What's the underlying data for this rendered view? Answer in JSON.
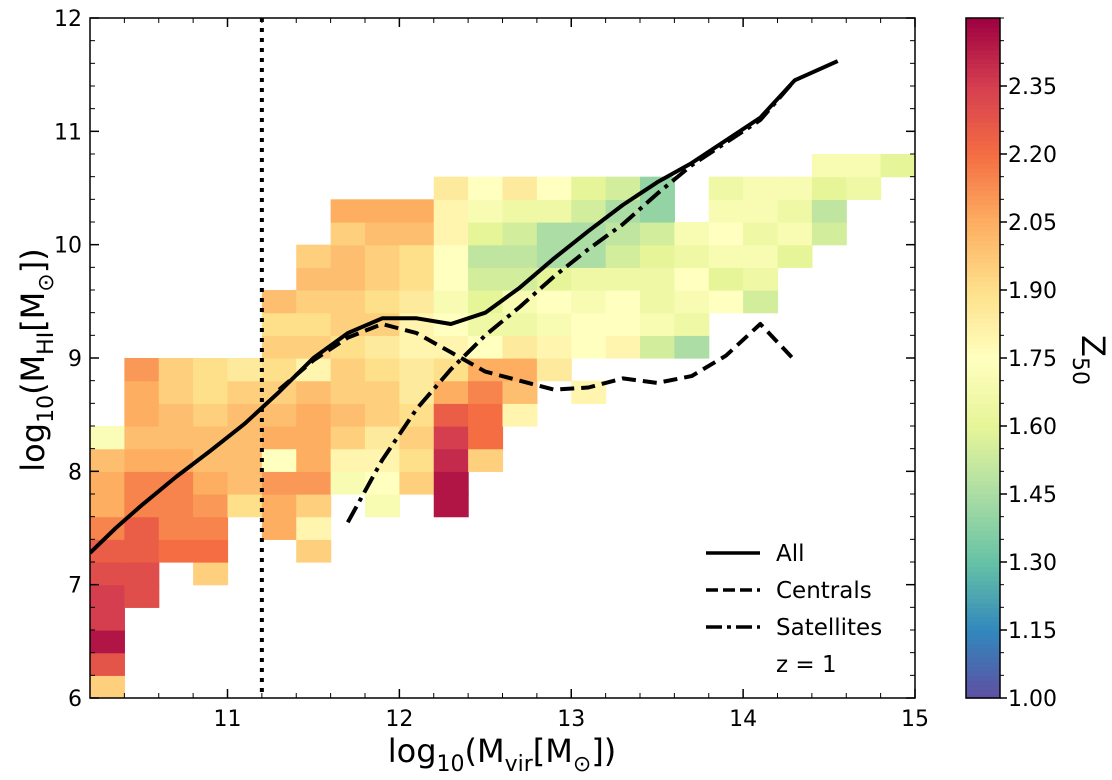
{
  "chart_data": {
    "type": "heatmap",
    "xlabel": {
      "main": "log",
      "sub1": "10",
      "open": "(M",
      "sub2": "vir",
      "mid": "[M",
      "sym": "⊙",
      "close": "])"
    },
    "ylabel": {
      "main": "log",
      "sub1": "10",
      "open": "(M",
      "sub2": "HI",
      "mid": "[M",
      "sym": "⊙",
      "close": "])"
    },
    "xlim": [
      10.2,
      15.0
    ],
    "ylim": [
      6.0,
      12.0
    ],
    "xticks": [
      {
        "value": 11,
        "label": "11"
      },
      {
        "value": 12,
        "label": "12"
      },
      {
        "value": 13,
        "label": "13"
      },
      {
        "value": 14,
        "label": "14"
      },
      {
        "value": 15,
        "label": "15"
      }
    ],
    "yticks": [
      {
        "value": 6,
        "label": "6"
      },
      {
        "value": 7,
        "label": "7"
      },
      {
        "value": 8,
        "label": "8"
      },
      {
        "value": 9,
        "label": "9"
      },
      {
        "value": 10,
        "label": "10"
      },
      {
        "value": 11,
        "label": "11"
      },
      {
        "value": 12,
        "label": "12"
      }
    ],
    "grid": false,
    "vline_x": 11.2,
    "bin": {
      "x0": 10.2,
      "dx": 0.2,
      "y0": 6.0,
      "dy": 0.2
    },
    "cells": [
      [
        0,
        0,
        1.95
      ],
      [
        0,
        1,
        2.28
      ],
      [
        0,
        2,
        2.45
      ],
      [
        0,
        3,
        2.35
      ],
      [
        0,
        4,
        2.35
      ],
      [
        0,
        5,
        2.3
      ],
      [
        0,
        6,
        2.25
      ],
      [
        0,
        7,
        2.15
      ],
      [
        0,
        8,
        2.05
      ],
      [
        0,
        9,
        2.05
      ],
      [
        0,
        10,
        2.0
      ],
      [
        0,
        11,
        1.72
      ],
      [
        1,
        4,
        2.3
      ],
      [
        1,
        5,
        2.3
      ],
      [
        1,
        6,
        2.25
      ],
      [
        1,
        7,
        2.25
      ],
      [
        1,
        8,
        2.15
      ],
      [
        1,
        9,
        2.15
      ],
      [
        1,
        10,
        2.05
      ],
      [
        1,
        11,
        2.0
      ],
      [
        1,
        12,
        2.05
      ],
      [
        1,
        13,
        2.05
      ],
      [
        1,
        14,
        2.1
      ],
      [
        2,
        6,
        2.2
      ],
      [
        2,
        7,
        2.15
      ],
      [
        2,
        8,
        2.15
      ],
      [
        2,
        9,
        2.15
      ],
      [
        2,
        10,
        2.05
      ],
      [
        2,
        11,
        2.0
      ],
      [
        2,
        12,
        2.0
      ],
      [
        2,
        13,
        1.95
      ],
      [
        2,
        14,
        1.95
      ],
      [
        3,
        5,
        1.95
      ],
      [
        3,
        6,
        2.2
      ],
      [
        3,
        7,
        2.15
      ],
      [
        3,
        8,
        2.1
      ],
      [
        3,
        9,
        2.05
      ],
      [
        3,
        10,
        2.0
      ],
      [
        3,
        11,
        2.0
      ],
      [
        3,
        12,
        1.95
      ],
      [
        3,
        13,
        1.9
      ],
      [
        3,
        14,
        1.9
      ],
      [
        4,
        8,
        1.9
      ],
      [
        4,
        9,
        2.0
      ],
      [
        4,
        10,
        2.0
      ],
      [
        4,
        11,
        2.0
      ],
      [
        4,
        12,
        2.0
      ],
      [
        4,
        13,
        1.95
      ],
      [
        4,
        14,
        1.85
      ],
      [
        5,
        7,
        2.05
      ],
      [
        5,
        8,
        2.05
      ],
      [
        5,
        9,
        2.1
      ],
      [
        5,
        10,
        1.75
      ],
      [
        5,
        11,
        2.05
      ],
      [
        5,
        12,
        2.0
      ],
      [
        5,
        13,
        1.95
      ],
      [
        5,
        14,
        1.9
      ],
      [
        5,
        15,
        1.95
      ],
      [
        5,
        16,
        1.9
      ],
      [
        5,
        17,
        2.0
      ],
      [
        6,
        6,
        1.95
      ],
      [
        6,
        7,
        1.8
      ],
      [
        6,
        8,
        1.95
      ],
      [
        6,
        9,
        2.1
      ],
      [
        6,
        10,
        2.05
      ],
      [
        6,
        11,
        2.05
      ],
      [
        6,
        12,
        2.05
      ],
      [
        6,
        13,
        2.0
      ],
      [
        6,
        14,
        1.8
      ],
      [
        6,
        15,
        1.95
      ],
      [
        6,
        16,
        1.9
      ],
      [
        6,
        17,
        1.95
      ],
      [
        6,
        18,
        2.0
      ],
      [
        6,
        19,
        1.95
      ],
      [
        7,
        9,
        1.7
      ],
      [
        7,
        10,
        1.8
      ],
      [
        7,
        11,
        1.95
      ],
      [
        7,
        12,
        2.0
      ],
      [
        7,
        13,
        1.95
      ],
      [
        7,
        14,
        1.95
      ],
      [
        7,
        15,
        1.9
      ],
      [
        7,
        16,
        1.95
      ],
      [
        7,
        17,
        1.95
      ],
      [
        7,
        18,
        2.0
      ],
      [
        7,
        19,
        2.0
      ],
      [
        7,
        20,
        1.95
      ],
      [
        7,
        21,
        2.05
      ],
      [
        8,
        8,
        1.7
      ],
      [
        8,
        9,
        1.75
      ],
      [
        8,
        10,
        1.8
      ],
      [
        8,
        11,
        1.85
      ],
      [
        8,
        12,
        1.95
      ],
      [
        8,
        13,
        1.95
      ],
      [
        8,
        14,
        1.9
      ],
      [
        8,
        15,
        1.85
      ],
      [
        8,
        16,
        1.95
      ],
      [
        8,
        17,
        1.9
      ],
      [
        8,
        18,
        1.95
      ],
      [
        8,
        19,
        1.95
      ],
      [
        8,
        20,
        2.0
      ],
      [
        8,
        21,
        2.05
      ],
      [
        9,
        9,
        1.95
      ],
      [
        9,
        10,
        1.9
      ],
      [
        9,
        11,
        1.95
      ],
      [
        9,
        12,
        1.9
      ],
      [
        9,
        13,
        1.85
      ],
      [
        9,
        14,
        1.85
      ],
      [
        9,
        15,
        1.8
      ],
      [
        9,
        16,
        1.8
      ],
      [
        9,
        17,
        1.85
      ],
      [
        9,
        18,
        1.9
      ],
      [
        9,
        19,
        1.9
      ],
      [
        9,
        20,
        2.0
      ],
      [
        9,
        21,
        2.05
      ],
      [
        10,
        8,
        2.45
      ],
      [
        10,
        9,
        2.45
      ],
      [
        10,
        10,
        2.4
      ],
      [
        10,
        11,
        2.35
      ],
      [
        10,
        12,
        2.25
      ],
      [
        10,
        13,
        2.05
      ],
      [
        10,
        14,
        1.9
      ],
      [
        10,
        15,
        1.8
      ],
      [
        10,
        16,
        1.75
      ],
      [
        10,
        17,
        1.7
      ],
      [
        10,
        18,
        1.75
      ],
      [
        10,
        19,
        1.75
      ],
      [
        10,
        20,
        1.8
      ],
      [
        10,
        21,
        1.8
      ],
      [
        10,
        22,
        1.85
      ],
      [
        11,
        10,
        1.95
      ],
      [
        11,
        11,
        2.2
      ],
      [
        11,
        12,
        2.2
      ],
      [
        11,
        13,
        2.15
      ],
      [
        11,
        14,
        2.05
      ],
      [
        11,
        15,
        1.75
      ],
      [
        11,
        16,
        1.65
      ],
      [
        11,
        17,
        1.6
      ],
      [
        11,
        18,
        1.55
      ],
      [
        11,
        19,
        1.5
      ],
      [
        11,
        20,
        1.6
      ],
      [
        11,
        21,
        1.7
      ],
      [
        11,
        22,
        1.75
      ],
      [
        12,
        12,
        1.8
      ],
      [
        12,
        13,
        2.0
      ],
      [
        12,
        14,
        2.05
      ],
      [
        12,
        15,
        1.85
      ],
      [
        12,
        16,
        1.65
      ],
      [
        12,
        17,
        1.7
      ],
      [
        12,
        18,
        1.55
      ],
      [
        12,
        19,
        1.5
      ],
      [
        12,
        20,
        1.55
      ],
      [
        12,
        21,
        1.65
      ],
      [
        12,
        22,
        1.85
      ],
      [
        13,
        14,
        1.85
      ],
      [
        13,
        15,
        1.8
      ],
      [
        13,
        16,
        1.7
      ],
      [
        13,
        17,
        1.75
      ],
      [
        13,
        18,
        1.6
      ],
      [
        13,
        19,
        1.45
      ],
      [
        13,
        20,
        1.45
      ],
      [
        13,
        21,
        1.65
      ],
      [
        13,
        22,
        1.75
      ],
      [
        14,
        13,
        1.8
      ],
      [
        14,
        15,
        1.75
      ],
      [
        14,
        16,
        1.75
      ],
      [
        14,
        17,
        1.7
      ],
      [
        14,
        18,
        1.65
      ],
      [
        14,
        19,
        1.45
      ],
      [
        14,
        20,
        1.45
      ],
      [
        14,
        21,
        1.55
      ],
      [
        14,
        22,
        1.6
      ],
      [
        15,
        15,
        1.8
      ],
      [
        15,
        16,
        1.75
      ],
      [
        15,
        17,
        1.75
      ],
      [
        15,
        18,
        1.65
      ],
      [
        15,
        19,
        1.55
      ],
      [
        15,
        20,
        1.5
      ],
      [
        15,
        21,
        1.45
      ],
      [
        15,
        22,
        1.55
      ],
      [
        16,
        15,
        1.55
      ],
      [
        16,
        16,
        1.7
      ],
      [
        16,
        17,
        1.65
      ],
      [
        16,
        18,
        1.65
      ],
      [
        16,
        19,
        1.6
      ],
      [
        16,
        20,
        1.55
      ],
      [
        16,
        21,
        1.4
      ],
      [
        16,
        22,
        1.4
      ],
      [
        17,
        15,
        1.45
      ],
      [
        17,
        16,
        1.65
      ],
      [
        17,
        17,
        1.7
      ],
      [
        17,
        18,
        1.75
      ],
      [
        17,
        19,
        1.65
      ],
      [
        17,
        20,
        1.7
      ],
      [
        18,
        17,
        1.75
      ],
      [
        18,
        18,
        1.6
      ],
      [
        18,
        19,
        1.7
      ],
      [
        18,
        20,
        1.75
      ],
      [
        18,
        21,
        1.7
      ],
      [
        18,
        22,
        1.65
      ],
      [
        19,
        17,
        1.55
      ],
      [
        19,
        18,
        1.65
      ],
      [
        19,
        19,
        1.7
      ],
      [
        19,
        20,
        1.65
      ],
      [
        19,
        21,
        1.7
      ],
      [
        19,
        22,
        1.7
      ],
      [
        20,
        19,
        1.6
      ],
      [
        20,
        20,
        1.7
      ],
      [
        20,
        21,
        1.65
      ],
      [
        20,
        22,
        1.7
      ],
      [
        21,
        20,
        1.55
      ],
      [
        21,
        21,
        1.5
      ],
      [
        21,
        22,
        1.6
      ],
      [
        21,
        23,
        1.7
      ],
      [
        22,
        22,
        1.65
      ],
      [
        22,
        23,
        1.7
      ],
      [
        23,
        23,
        1.6
      ]
    ],
    "series": [
      {
        "name": "All",
        "style": "solid",
        "x": [
          10.2,
          10.35,
          10.5,
          10.7,
          10.9,
          11.1,
          11.3,
          11.5,
          11.7,
          11.9,
          12.1,
          12.3,
          12.5,
          12.7,
          12.9,
          13.1,
          13.3,
          13.5,
          13.7,
          13.9,
          14.1,
          14.3,
          14.55
        ],
        "y": [
          7.28,
          7.5,
          7.7,
          7.95,
          8.18,
          8.42,
          8.7,
          9.0,
          9.22,
          9.35,
          9.35,
          9.3,
          9.4,
          9.62,
          9.88,
          10.12,
          10.35,
          10.55,
          10.72,
          10.92,
          11.12,
          11.45,
          11.62
        ]
      },
      {
        "name": "Centrals",
        "style": "dashed",
        "x": [
          11.3,
          11.5,
          11.7,
          11.9,
          12.1,
          12.3,
          12.5,
          12.7,
          12.9,
          13.1,
          13.3,
          13.5,
          13.7,
          13.9,
          14.1,
          14.3
        ],
        "y": [
          8.72,
          8.98,
          9.18,
          9.3,
          9.22,
          9.05,
          8.88,
          8.8,
          8.72,
          8.74,
          8.82,
          8.78,
          8.84,
          9.02,
          9.3,
          8.98
        ]
      },
      {
        "name": "Satellites",
        "style": "dashdot",
        "x": [
          11.7,
          11.9,
          12.1,
          12.3,
          12.5,
          12.7,
          12.9,
          13.1,
          13.3,
          13.5,
          13.7,
          13.9,
          14.1,
          14.3
        ],
        "y": [
          7.55,
          8.1,
          8.55,
          8.9,
          9.2,
          9.45,
          9.72,
          9.96,
          10.18,
          10.45,
          10.7,
          10.9,
          11.1,
          11.45
        ]
      }
    ],
    "legend": {
      "position": "bottom-right",
      "entries": [
        {
          "label": "All",
          "style": "solid"
        },
        {
          "label": "Centrals",
          "style": "dashed"
        },
        {
          "label": "Satellites",
          "style": "dashdot"
        }
      ],
      "note": "z = 1"
    },
    "colorbar": {
      "label_main": "Z",
      "label_sub": "50",
      "vmin": 1.0,
      "vmax": 2.5,
      "ticks": [
        {
          "value": 1.0,
          "label": "1.00"
        },
        {
          "value": 1.15,
          "label": "1.15"
        },
        {
          "value": 1.3,
          "label": "1.30"
        },
        {
          "value": 1.45,
          "label": "1.45"
        },
        {
          "value": 1.6,
          "label": "1.60"
        },
        {
          "value": 1.75,
          "label": "1.75"
        },
        {
          "value": 1.9,
          "label": "1.90"
        },
        {
          "value": 2.05,
          "label": "2.05"
        },
        {
          "value": 2.2,
          "label": "2.20"
        },
        {
          "value": 2.35,
          "label": "2.35"
        }
      ],
      "colormap": [
        "#5e4fa2",
        "#3288bd",
        "#66c2a5",
        "#abdda4",
        "#e6f598",
        "#ffffbf",
        "#fee08b",
        "#fdae61",
        "#f46d43",
        "#d53e4f",
        "#9e0142"
      ]
    }
  }
}
